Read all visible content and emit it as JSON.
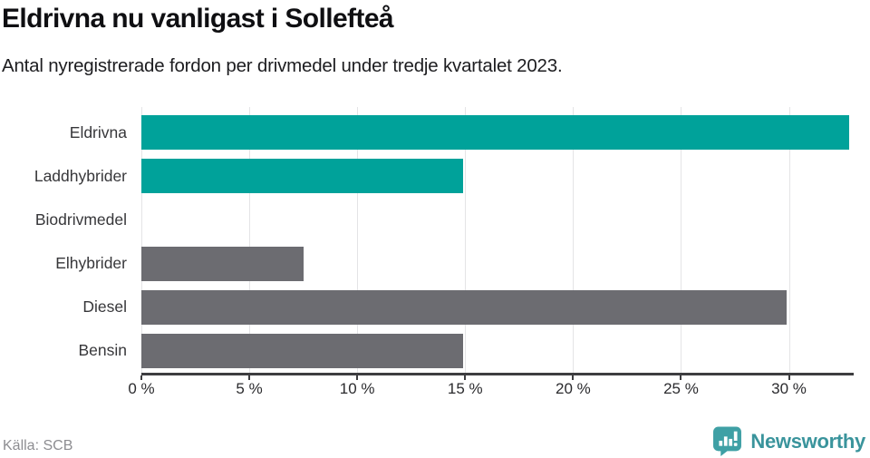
{
  "header": {
    "title": "Eldrivna nu vanligast i Sollefteå",
    "subtitle": "Antal nyregistrerade fordon per drivmedel under tredje kvartalet 2023."
  },
  "chart_data": {
    "type": "bar",
    "orientation": "horizontal",
    "title": "Eldrivna nu vanligast i Sollefteå",
    "subtitle": "Antal nyregistrerade fordon per drivmedel under tredje kvartalet 2023.",
    "categories": [
      "Eldrivna",
      "Laddhybrider",
      "Biodrivmedel",
      "Elhybrider",
      "Diesel",
      "Bensin"
    ],
    "values": [
      32.8,
      14.9,
      0,
      7.5,
      29.9,
      14.9
    ],
    "unit": "%",
    "xlabel": "",
    "ylabel": "",
    "xlim": [
      0,
      33
    ],
    "xticks": [
      0,
      5,
      10,
      15,
      20,
      25,
      30
    ],
    "xtick_labels": [
      "0 %",
      "5 %",
      "10 %",
      "15 %",
      "20 %",
      "25 %",
      "30 %"
    ],
    "bar_colors": [
      "#00a29a",
      "#00a29a",
      "#00a29a",
      "#6c6c71",
      "#6c6c71",
      "#6c6c71"
    ],
    "grid": "vertical-only",
    "legend": "none"
  },
  "colors": {
    "teal_bar": "#00a29a",
    "gray_bar": "#6c6c71",
    "gridline": "#e4e4e6",
    "axis": "#3d3d40",
    "brand_teal": "#3a949c"
  },
  "footer": {
    "source": "Källa: SCB",
    "brand": "Newsworthy"
  }
}
